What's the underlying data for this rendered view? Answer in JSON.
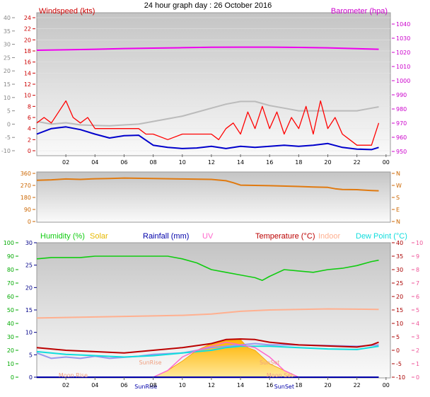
{
  "title": "24 hour graph day : 26 October 2016",
  "colors": {
    "wind": "#ff0000",
    "gust": "#0000cc",
    "baro": "#ee00ee",
    "trend": "#bbbbbb",
    "dir": "#e07a10",
    "hum": "#11cc11",
    "solar": "#e6b800",
    "rain": "#0000aa",
    "uv": "#ff66cc",
    "temp": "#bb0000",
    "indoor": "#ffb090",
    "dew": "#11dddd",
    "tempAlt": "#9999ee"
  },
  "chart_data": [
    {
      "type": "line",
      "title": "24 hour graph day : 26 October 2016",
      "xlabels": [
        "02",
        "04",
        "06",
        "08",
        "10",
        "12",
        "14",
        "16",
        "18",
        "20",
        "22",
        "00"
      ],
      "y_left": {
        "label": "Windspeed (kts)",
        "ticks": [
          "24",
          "22",
          "20",
          "18",
          "16",
          "14",
          "12",
          "10",
          "8",
          "6",
          "4",
          "2",
          "0"
        ],
        "range": [
          0,
          25
        ]
      },
      "y_far_left": {
        "ticks": [
          "40",
          "35",
          "30",
          "25",
          "20",
          "15",
          "10",
          "5",
          "0",
          "-5",
          "-10"
        ],
        "range": [
          -10,
          42
        ]
      },
      "y_right": {
        "label": "Barometer (hpa)",
        "ticks": [
          "1040",
          "1030",
          "1020",
          "1010",
          "1000",
          "990",
          "980",
          "970",
          "960",
          "950"
        ],
        "range": [
          949,
          1046
        ]
      },
      "series": [
        {
          "name": "Barometer (hpa)",
          "axis": "right",
          "x": [
            0,
            2,
            4,
            6,
            8,
            10,
            12,
            14,
            16,
            18,
            20,
            22,
            23.5
          ],
          "values": [
            1021.5,
            1021.8,
            1022.2,
            1022.7,
            1023,
            1023.3,
            1023.6,
            1023.7,
            1023.7,
            1023.5,
            1023.2,
            1022.6,
            1022.2
          ]
        },
        {
          "axis": "far_left",
          "x": [
            0,
            1,
            2,
            3,
            4,
            5,
            6,
            7,
            8,
            9,
            10,
            11,
            12,
            13,
            14,
            15,
            16,
            17,
            18,
            19,
            20,
            21,
            22,
            23,
            23.5
          ],
          "values": [
            1,
            0,
            0.5,
            -0.3,
            -0.5,
            -0.6,
            -0.3,
            0,
            1,
            2,
            3,
            4.5,
            6,
            7.5,
            8.5,
            8.5,
            7,
            6,
            5,
            5,
            5,
            5,
            5,
            6,
            6.5
          ]
        },
        {
          "axis": "left",
          "x": [
            0,
            0.5,
            1,
            1.5,
            2,
            2.5,
            3,
            3.5,
            4,
            5,
            6,
            7,
            7.5,
            8,
            9,
            10,
            11,
            12,
            12.5,
            13,
            13.5,
            14,
            14.5,
            15,
            15.5,
            16,
            16.5,
            17,
            17.5,
            18,
            18.5,
            19,
            19.5,
            20,
            20.5,
            21,
            21.5,
            22,
            22.5,
            23,
            23.5
          ],
          "values": [
            5,
            6,
            5,
            7,
            9,
            6,
            5,
            6,
            4,
            4,
            4,
            4,
            3,
            3,
            2,
            3,
            3,
            3,
            2,
            4,
            5,
            3,
            7,
            4,
            8,
            4,
            7,
            3,
            6,
            4,
            8,
            3,
            9,
            4,
            6,
            3,
            2,
            1,
            1,
            1,
            5
          ]
        },
        {
          "axis": "left",
          "x": [
            0,
            1,
            2,
            3,
            4,
            5,
            6,
            7,
            8,
            9,
            10,
            11,
            12,
            13,
            14,
            15,
            16,
            17,
            18,
            19,
            20,
            21,
            22,
            23,
            23.5
          ],
          "values": [
            3,
            4,
            4.3,
            3.8,
            3,
            2.3,
            2.7,
            2.8,
            1,
            0.6,
            0.4,
            0.5,
            0.8,
            0.4,
            0.8,
            0.6,
            0.8,
            1,
            0.8,
            1,
            1.3,
            0.6,
            0.3,
            0.2,
            0.6
          ]
        }
      ]
    },
    {
      "type": "line",
      "y_left": {
        "ticks": [
          "360",
          "270",
          "180",
          "90",
          "0"
        ],
        "range": [
          0,
          360
        ]
      },
      "y_right": {
        "ticks": [
          "N",
          "W",
          "S",
          "E",
          "N"
        ]
      },
      "series": [
        {
          "axis": "left",
          "x": [
            0,
            1,
            2,
            3,
            4,
            5,
            6,
            8,
            10,
            12,
            13,
            13.5,
            14,
            16,
            18,
            19,
            20,
            20.5,
            21,
            22,
            23,
            23.5
          ],
          "values": [
            308,
            312,
            318,
            315,
            320,
            322,
            325,
            322,
            318,
            315,
            305,
            290,
            272,
            268,
            262,
            258,
            255,
            245,
            240,
            238,
            232,
            230
          ]
        }
      ]
    },
    {
      "type": "line",
      "legend": [
        "Humidity (%)",
        "Solar",
        "Rainfall (mm)",
        "UV",
        "Temperature (°C)",
        "Indoor",
        "Dew Point (°C)"
      ],
      "y_hum": {
        "ticks": [
          "100",
          "90",
          "80",
          "70",
          "60",
          "50",
          "40",
          "30",
          "20",
          "10",
          "0"
        ],
        "range": [
          0,
          100
        ]
      },
      "y_rain": {
        "ticks": [
          "30",
          "25",
          "20",
          "15",
          "10",
          "5",
          "0"
        ],
        "range": [
          0,
          30
        ]
      },
      "y_temp": {
        "ticks": [
          "40",
          "35",
          "30",
          "25",
          "20",
          "15",
          "10",
          "5",
          "0",
          "-5",
          "-10"
        ],
        "range": [
          -10,
          40
        ]
      },
      "y_uv": {
        "ticks": [
          "10",
          "9",
          "8",
          "7",
          "6",
          "5",
          "4",
          "3",
          "2",
          "1",
          "0"
        ],
        "range": [
          0,
          10
        ]
      },
      "events": [
        "Moon Rise",
        "SunRise",
        "SunSet",
        "SunRise",
        "SunSet",
        "Moon Set"
      ],
      "series": [
        {
          "name": "Humidity (%)",
          "axis": "hum",
          "x": [
            0,
            1,
            2,
            3,
            4,
            5,
            6,
            7,
            8,
            9,
            10,
            11,
            12,
            13,
            14,
            15,
            15.5,
            16,
            17,
            18,
            19,
            20,
            21,
            22,
            23,
            23.5
          ],
          "values": [
            88,
            89,
            89,
            89,
            90,
            90,
            90,
            90,
            90,
            90,
            88,
            85,
            80,
            78,
            76,
            74,
            72,
            75,
            80,
            79,
            78,
            80,
            81,
            83,
            86,
            87
          ]
        },
        {
          "name": "Solar",
          "axis": "hum",
          "x": [
            8,
            9,
            10,
            11,
            12,
            13,
            14,
            14.5,
            15,
            16,
            17,
            18
          ],
          "values": [
            0,
            5,
            12,
            20,
            25,
            28,
            28,
            22,
            20,
            10,
            5,
            0
          ]
        },
        {
          "name": "Rainfall (mm)",
          "axis": "rain",
          "x": [
            0,
            23.5
          ],
          "values": [
            0,
            0
          ]
        },
        {
          "name": "UV",
          "axis": "uv",
          "x": [
            8,
            9,
            10,
            11,
            12,
            13,
            14,
            15,
            16,
            17,
            18
          ],
          "values": [
            0,
            0.5,
            1.5,
            2,
            2.3,
            2.6,
            2.4,
            2.2,
            1.5,
            0.5,
            0
          ]
        },
        {
          "name": "Temperature (°C)",
          "axis": "temp",
          "x": [
            0,
            2,
            4,
            6,
            8,
            10,
            12,
            13,
            14,
            15,
            16,
            18,
            20,
            22,
            23,
            23.5
          ],
          "values": [
            1,
            0,
            -0.5,
            -1,
            0,
            1,
            2.5,
            4,
            4.2,
            4,
            3,
            2,
            1.6,
            1.2,
            2,
            3
          ]
        },
        {
          "name": "Indoor",
          "axis": "temp",
          "x": [
            0,
            2,
            4,
            6,
            8,
            10,
            12,
            14,
            16,
            18,
            20,
            22,
            23.5
          ],
          "values": [
            12,
            12.2,
            12.4,
            12.6,
            12.8,
            13,
            13.5,
            14.5,
            15,
            15.2,
            15.4,
            15.3,
            15.2
          ]
        },
        {
          "name": "Dew Point (°C)",
          "axis": "temp",
          "x": [
            0,
            2,
            4,
            6,
            8,
            10,
            12,
            13,
            14,
            16,
            18,
            20,
            22,
            23.5
          ],
          "values": [
            -0.5,
            -1.5,
            -2,
            -2.5,
            -2,
            -1,
            0,
            1,
            1.5,
            1.5,
            1,
            0.5,
            0.3,
            1.5
          ]
        },
        {
          "axis": "temp",
          "x": [
            0,
            1,
            2,
            3,
            4,
            5,
            6,
            7,
            8,
            10,
            12,
            14,
            15,
            16,
            18,
            20,
            22,
            23.5
          ],
          "values": [
            -1,
            -3,
            -2.5,
            -3,
            -2.2,
            -3,
            -2.6,
            -2.2,
            -1.5,
            -1,
            1,
            2,
            2.5,
            2,
            2,
            1.8,
            1.5,
            2
          ]
        }
      ]
    }
  ]
}
